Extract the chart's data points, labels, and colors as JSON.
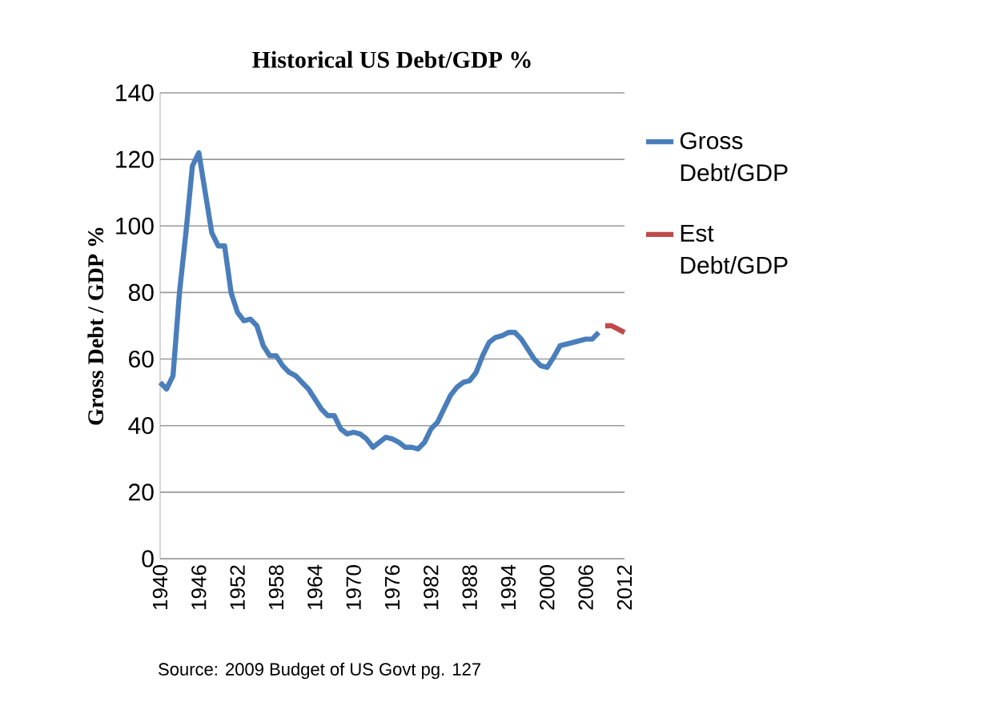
{
  "chart_data": {
    "type": "line",
    "title": "Historical US Debt/GDP  %",
    "ylabel": "Gross Debt / GDP %",
    "annotations": [
      "Source: 2009 Budget of US Govt pg. 127"
    ],
    "xlim": [
      1940,
      2012
    ],
    "xticks": [
      1940,
      1946,
      1952,
      1958,
      1964,
      1970,
      1976,
      1982,
      1988,
      1994,
      2000,
      2006,
      2012
    ],
    "ylim": [
      0,
      140
    ],
    "yticks": [
      0,
      20,
      40,
      60,
      80,
      100,
      120,
      140
    ],
    "grid": "y",
    "legend": "right",
    "marker": "none",
    "line_style": "solid",
    "series": [
      {
        "name": "Gross Debt/GDP",
        "color": "#4a7ebb",
        "x": [
          1940,
          1941,
          1942,
          1943,
          1944,
          1945,
          1946,
          1947,
          1948,
          1949,
          1950,
          1951,
          1952,
          1953,
          1954,
          1955,
          1956,
          1957,
          1958,
          1959,
          1960,
          1961,
          1962,
          1963,
          1964,
          1965,
          1966,
          1967,
          1968,
          1969,
          1970,
          1971,
          1972,
          1973,
          1974,
          1975,
          1976,
          1977,
          1978,
          1979,
          1980,
          1981,
          1982,
          1983,
          1984,
          1985,
          1986,
          1987,
          1988,
          1989,
          1990,
          1991,
          1992,
          1993,
          1994,
          1995,
          1996,
          1997,
          1998,
          1999,
          2000,
          2001,
          2002,
          2003,
          2004,
          2005,
          2006,
          2007,
          2008
        ],
        "values": [
          53,
          51,
          55,
          80,
          98,
          118,
          122,
          110,
          98,
          94,
          94,
          80,
          74,
          71.5,
          72,
          70,
          64,
          61,
          61,
          58,
          56,
          55,
          53,
          51,
          48,
          45,
          43,
          43,
          39,
          37.5,
          38,
          37.5,
          36,
          33.5,
          35,
          36.5,
          36,
          35,
          33.5,
          33.5,
          33,
          35,
          39,
          41,
          45,
          49,
          51.5,
          53,
          53.5,
          56,
          61,
          65,
          66.5,
          67,
          68,
          68,
          66,
          63,
          60,
          58,
          57.5,
          60.5,
          64,
          64.5,
          65,
          65.5,
          66,
          66,
          68
        ]
      },
      {
        "name": "Est Debt/GDP",
        "color": "#be4b48",
        "x": [
          2009,
          2010,
          2011,
          2012
        ],
        "values": [
          70,
          70,
          69,
          68
        ]
      }
    ]
  }
}
